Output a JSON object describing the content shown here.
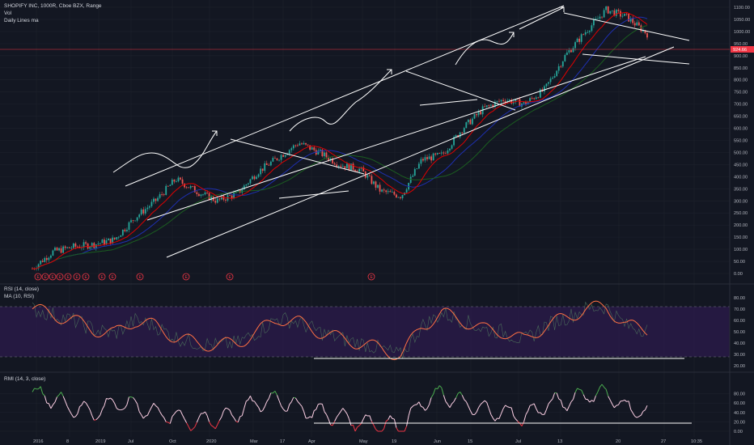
{
  "legend": {
    "main_title": "SHOPIFY INC, 1000R, Cboe BZX, Range",
    "vol": "Vol",
    "ma": "Daily Lines ma",
    "rsi": "RSI (14, close)",
    "rsi_ma": "MA (10, RSI)",
    "rmi": "RMI (14, 3, close)"
  },
  "price_badge": "924.66",
  "colors": {
    "background": "#131722",
    "up": "#26a69a",
    "down": "#ef5350",
    "ma_red": "#e00000",
    "ma_blue": "#1e2fb0",
    "ma_green": "#1b5e20",
    "rsi_line": "#ff7043",
    "rsi_band": "#2a1a4a",
    "rmi_line": "#ffd1e6",
    "rmi_hi": "#4caf50",
    "rmi_lo": "#f23645",
    "drawings": "#ffffff"
  },
  "x_labels": [
    "2016",
    "8",
    "2019",
    "Jul",
    "Oct",
    "2020",
    "Mar",
    "17",
    "Apr",
    "May",
    "19",
    "Jun",
    "15",
    "Jul",
    "13",
    "20",
    "27",
    "10:35"
  ],
  "earnings_marker": "E",
  "chart_data": [
    {
      "type": "line",
      "y_ticks": [
        "1100.00",
        "1050.00",
        "1000.00",
        "950.00",
        "900.00",
        "850.00",
        "800.00",
        "750.00",
        "700.00",
        "650.00",
        "600.00",
        "550.00",
        "500.00",
        "450.00",
        "400.00",
        "350.00",
        "300.00",
        "250.00",
        "200.00",
        "150.00",
        "100.00",
        "50.00",
        "0.00"
      ],
      "ylim": [
        0,
        1100
      ],
      "x": [
        0,
        10,
        20,
        30,
        40,
        50,
        60,
        70,
        80,
        90,
        100,
        110,
        120,
        130,
        140,
        150,
        160,
        170,
        180,
        190,
        200,
        210,
        220,
        230,
        240,
        250,
        260,
        270,
        280,
        290,
        300
      ],
      "series": [
        {
          "values": [
            20,
            90,
            110,
            120,
            140,
            230,
            300,
            390,
            340,
            300,
            330,
            420,
            480,
            540,
            500,
            450,
            430,
            340,
            320,
            470,
            490,
            600,
            680,
            720,
            700,
            760,
            900,
            1000,
            1090,
            1060,
            990
          ]
        }
      ]
    },
    {
      "type": "line",
      "y_ticks": [
        "80.00",
        "70.00",
        "60.00",
        "50.00",
        "40.00",
        "30.00",
        "20.00"
      ],
      "ylim": [
        18,
        82
      ],
      "levels": [
        70,
        30
      ],
      "x": [
        0,
        10,
        20,
        30,
        40,
        50,
        60,
        70,
        80,
        90,
        100,
        110,
        120,
        130,
        140,
        150,
        160,
        170,
        180,
        190,
        200,
        210,
        220,
        230,
        240,
        250,
        260,
        270,
        280,
        290,
        300
      ],
      "series": [
        {
          "values": [
            70,
            65,
            60,
            52,
            48,
            60,
            55,
            45,
            40,
            38,
            40,
            50,
            62,
            58,
            50,
            44,
            40,
            35,
            29,
            55,
            66,
            60,
            52,
            50,
            42,
            55,
            62,
            70,
            72,
            55,
            52
          ]
        }
      ]
    },
    {
      "type": "line",
      "y_ticks": [
        "80.00",
        "60.00",
        "40.00",
        "20.00",
        "0.00"
      ],
      "ylim": [
        0,
        100
      ],
      "x": [
        0,
        10,
        20,
        30,
        40,
        50,
        60,
        70,
        80,
        90,
        100,
        110,
        120,
        130,
        140,
        150,
        160,
        170,
        180,
        190,
        200,
        210,
        220,
        230,
        240,
        250,
        260,
        270,
        280,
        290,
        300
      ],
      "series": [
        {
          "values": [
            80,
            70,
            50,
            40,
            60,
            55,
            40,
            30,
            20,
            25,
            40,
            60,
            70,
            50,
            40,
            30,
            20,
            15,
            10,
            60,
            80,
            60,
            45,
            40,
            30,
            55,
            65,
            78,
            80,
            50,
            40
          ]
        }
      ]
    }
  ]
}
